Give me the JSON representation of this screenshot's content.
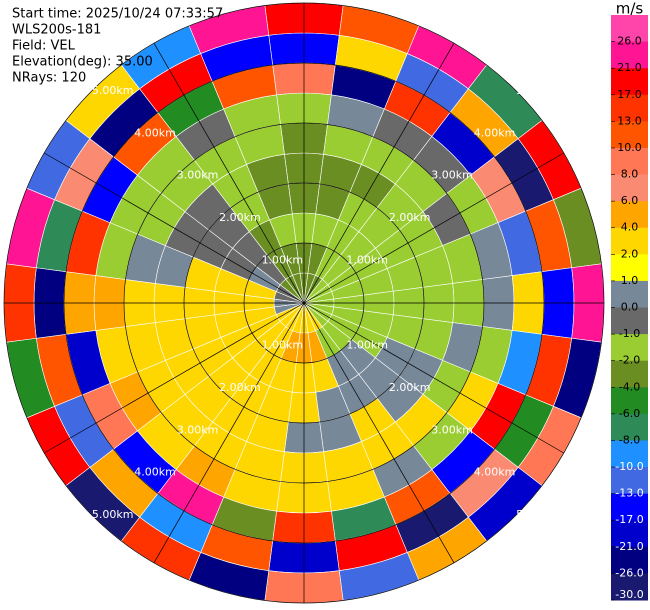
{
  "chart_data": {
    "type": "ppi",
    "header": [
      "Start time: 2025/10/24 07:33:57",
      "WLS200s-181",
      "Field: VEL",
      "Elevation(deg): 35.00",
      "NRays: 120"
    ],
    "azimuths": [
      0,
      15,
      30,
      45,
      60,
      75,
      90,
      105,
      120,
      135,
      150,
      165,
      180,
      195,
      210,
      225,
      240,
      255,
      270,
      285,
      300,
      315,
      330,
      345
    ],
    "range_bins": [
      0,
      0.5,
      1,
      1.5,
      2,
      2.5,
      3,
      3.5,
      4,
      4.5,
      5
    ],
    "values": [
      [
        -3,
        -3,
        -1.5,
        -3,
        -3,
        -3,
        -1.5,
        9,
        -15,
        20
      ],
      [
        -3,
        -3,
        -1.5,
        -3,
        -3,
        -1.5,
        0.5,
        -23,
        3,
        12
      ],
      [
        -3,
        -1.5,
        -1.5,
        -1.5,
        -3,
        -1.5,
        -0.5,
        15,
        -11,
        24
      ],
      [
        -1.5,
        -1.5,
        -1.5,
        -1.5,
        -1.5,
        -1.5,
        -0.5,
        -19,
        5,
        -7
      ],
      [
        -1.5,
        -1.5,
        -1.5,
        -1.5,
        -1.5,
        -0.5,
        -1.5,
        7,
        -28,
        19
      ],
      [
        -1.5,
        -1.5,
        -1.5,
        -1.5,
        -1.5,
        -1.5,
        0.5,
        -12,
        11,
        -3
      ],
      [
        -1.5,
        -1.5,
        -1.5,
        -1.5,
        -1.5,
        -1.5,
        0.5,
        3,
        -16,
        23
      ],
      [
        -1.5,
        -1.5,
        -1.5,
        -1.5,
        -1.5,
        0.5,
        -1.5,
        -9,
        14,
        -24
      ],
      [
        -1.5,
        -1.5,
        -1.5,
        0.5,
        0.5,
        -1.5,
        3,
        18,
        -5,
        9
      ],
      [
        -1.5,
        -1.5,
        0.5,
        0.5,
        0.5,
        3,
        -1.5,
        -14,
        7,
        -20
      ],
      [
        3,
        -1.5,
        0.5,
        0.5,
        3,
        3,
        0.5,
        11,
        -27,
        4
      ],
      [
        3,
        5,
        3,
        0.5,
        0.5,
        3,
        3,
        -7,
        20,
        -12
      ],
      [
        3,
        5,
        3,
        3,
        0.5,
        3,
        3,
        15,
        -18,
        8
      ],
      [
        3,
        5,
        3,
        3,
        3,
        3,
        3,
        -3,
        10,
        -22
      ],
      [
        3,
        3,
        3,
        3,
        3,
        3,
        5,
        22,
        -9,
        14
      ],
      [
        3,
        3,
        3,
        3,
        3,
        3,
        3,
        -15,
        5,
        -28
      ],
      [
        3,
        3,
        3,
        3,
        3,
        3,
        5,
        9,
        -11,
        18
      ],
      [
        0.5,
        3,
        3,
        3,
        3,
        3,
        3,
        -20,
        12,
        -5
      ],
      [
        0.5,
        3,
        3,
        3,
        3,
        3,
        5,
        4,
        -25,
        16
      ],
      [
        -0.5,
        3,
        3,
        3,
        0.5,
        0.5,
        -1.5,
        13,
        -8,
        23
      ],
      [
        -0.5,
        0.5,
        -0.5,
        -0.5,
        -0.5,
        -1.5,
        -1.5,
        -17,
        6,
        -13
      ],
      [
        -3,
        -0.5,
        -0.5,
        -0.5,
        -0.5,
        -1.5,
        -1.5,
        10,
        -22,
        3
      ],
      [
        -3,
        -3,
        -3,
        -1.5,
        -1.5,
        -1.5,
        -0.5,
        -6,
        19,
        -10
      ],
      [
        -3,
        -3,
        -1.5,
        -3,
        -3,
        -1.5,
        -1.5,
        12,
        -14,
        25
      ]
    ],
    "range_rings": [
      {
        "value": 1,
        "label": "1.00km"
      },
      {
        "value": 2,
        "label": "2.00km"
      },
      {
        "value": 3,
        "label": "3.00km"
      },
      {
        "value": 4,
        "label": "4.00km"
      },
      {
        "value": 5,
        "label": "5.00km"
      }
    ],
    "colorbar": {
      "label": "m/s",
      "ticks": [
        {
          "value": 26,
          "label": "26.0"
        },
        {
          "value": 21,
          "label": "21.0"
        },
        {
          "value": 17,
          "label": "17.0"
        },
        {
          "value": 13,
          "label": "13.0"
        },
        {
          "value": 10,
          "label": "10.0"
        },
        {
          "value": 8,
          "label": "8.0"
        },
        {
          "value": 6,
          "label": "6.0"
        },
        {
          "value": 4,
          "label": "4.0"
        },
        {
          "value": 2,
          "label": "2.0"
        },
        {
          "value": 1,
          "label": "1.0"
        },
        {
          "value": 0,
          "label": "0.0"
        },
        {
          "value": -1,
          "label": "-1.0"
        },
        {
          "value": -2,
          "label": "-2.0"
        },
        {
          "value": -4,
          "label": "-4.0"
        },
        {
          "value": -6,
          "label": "-6.0"
        },
        {
          "value": -8,
          "label": "-8.0"
        },
        {
          "value": -10,
          "label": "-10.0"
        },
        {
          "value": -13,
          "label": "-13.0"
        },
        {
          "value": -17,
          "label": "-17.0"
        },
        {
          "value": -21,
          "label": "-21.0"
        },
        {
          "value": -26,
          "label": "-26.0"
        },
        {
          "value": -30,
          "label": "-30.0"
        }
      ],
      "colors": [
        "#ff44aa",
        "#ff1493",
        "#ff0000",
        "#ff3300",
        "#ff5500",
        "#ff7755",
        "#fa8a72",
        "#ffa500",
        "#ffd700",
        "#ffff00",
        "#778899",
        "#696969",
        "#9acd32",
        "#6b8e23",
        "#228b22",
        "#2e8b57",
        "#1e90ff",
        "#4169e1",
        "#0000ff",
        "#0000cd",
        "#000080",
        "#191970"
      ]
    }
  }
}
